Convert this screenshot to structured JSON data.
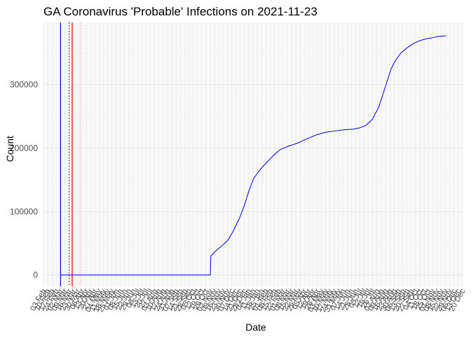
{
  "chart_data": {
    "type": "line",
    "title": "GA Coronavirus 'Probable' Infections on 2021-11-23",
    "xlabel": "Date",
    "ylabel": "Count",
    "x_type": "date",
    "xlim": [
      "2020-02-03",
      "2021-12-20"
    ],
    "ylim": [
      -18000,
      398000
    ],
    "y_ticks": [
      0,
      100000,
      200000,
      300000
    ],
    "y_tick_labels": [
      "0",
      "100000",
      "200000",
      "300000"
    ],
    "x_tick_labels": [
      "03 Feb",
      "10 Feb",
      "17 Feb",
      "24 Feb",
      "02 Mar",
      "09 Mar",
      "16 Mar",
      "23 Mar",
      "30 Mar",
      "06 Apr",
      "13 Apr",
      "20 Apr",
      "27 Apr",
      "04 May",
      "11 May",
      "18 May",
      "25 May",
      "01 Jun",
      "08 Jun",
      "15 Jun",
      "22 Jun",
      "29 Jun",
      "06 Jul",
      "13 Jul",
      "20 Jul",
      "27 Jul",
      "03 Aug",
      "10 Aug",
      "17 Aug",
      "24 Aug",
      "31 Aug",
      "07 Sep",
      "14 Sep",
      "21 Sep",
      "28 Sep",
      "05 Oct",
      "12 Oct",
      "19 Oct",
      "26 Oct",
      "02 Nov",
      "09 Nov",
      "16 Nov",
      "23 Nov",
      "30 Nov",
      "07 Dec",
      "14 Dec",
      "21 Dec",
      "28 Dec",
      "04 Jan",
      "11 Jan",
      "18 Jan",
      "25 Jan",
      "01 Feb",
      "08 Feb",
      "15 Feb",
      "22 Feb",
      "01 Mar",
      "08 Mar",
      "15 Mar",
      "22 Mar",
      "29 Mar",
      "05 Apr",
      "12 Apr",
      "19 Apr",
      "26 Apr",
      "03 May",
      "10 May",
      "17 May",
      "24 May",
      "31 May",
      "07 Jun",
      "14 Jun",
      "21 Jun",
      "28 Jun",
      "05 Jul",
      "12 Jul",
      "19 Jul",
      "26 Jul",
      "02 Aug",
      "09 Aug",
      "16 Aug",
      "23 Aug",
      "30 Aug",
      "06 Sep",
      "13 Sep",
      "20 Sep",
      "27 Sep",
      "04 Oct",
      "11 Oct",
      "18 Oct",
      "25 Oct",
      "01 Nov",
      "08 Nov",
      "15 Nov",
      "22 Nov",
      "29 Nov",
      "06 Dec",
      "13 Dec",
      "20 Dec"
    ],
    "grid": true,
    "series": [
      {
        "color": "#0000ff",
        "x": [
          "2020-03-02",
          "2020-11-02",
          "2020-11-03",
          "2020-11-10",
          "2020-11-20",
          "2020-12-01",
          "2020-12-10",
          "2020-12-20",
          "2020-12-28",
          "2021-01-05",
          "2021-01-12",
          "2021-01-20",
          "2021-01-28",
          "2021-02-05",
          "2021-02-15",
          "2021-02-25",
          "2021-03-10",
          "2021-03-25",
          "2021-04-10",
          "2021-04-25",
          "2021-05-10",
          "2021-05-25",
          "2021-06-10",
          "2021-06-25",
          "2021-07-05",
          "2021-07-15",
          "2021-07-25",
          "2021-08-05",
          "2021-08-15",
          "2021-08-25",
          "2021-09-01",
          "2021-09-10",
          "2021-09-20",
          "2021-10-01",
          "2021-10-10",
          "2021-10-20",
          "2021-11-01",
          "2021-11-10",
          "2021-11-23"
        ],
        "y": [
          0,
          0,
          30000,
          37000,
          45000,
          55000,
          70000,
          90000,
          110000,
          135000,
          152000,
          163000,
          172000,
          180000,
          190000,
          198000,
          203000,
          208000,
          215000,
          221000,
          225000,
          227000,
          229000,
          230000,
          232000,
          236000,
          245000,
          265000,
          295000,
          325000,
          338000,
          350000,
          358000,
          365000,
          369000,
          372000,
          374000,
          376000,
          377000
        ]
      }
    ],
    "vlines": [
      {
        "x": "2020-03-02",
        "color": "#0000ff",
        "style": "solid"
      },
      {
        "x": "2020-03-16",
        "color": "#8b0000",
        "style": "dotted"
      },
      {
        "x": "2020-03-21",
        "color": "#ff0000",
        "style": "solid"
      },
      {
        "x": "2020-04-03",
        "color": "#ff9999",
        "style": "dotted"
      }
    ]
  }
}
